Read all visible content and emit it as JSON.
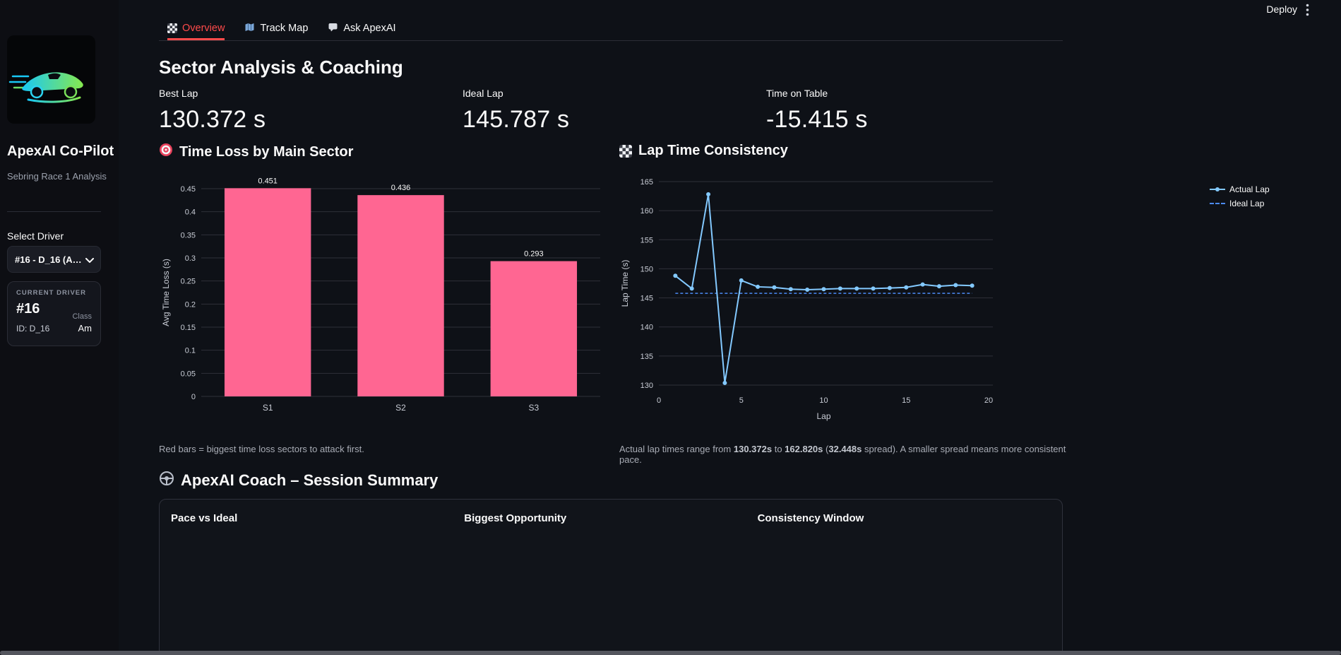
{
  "colors": {
    "accent": "#ff4b4b",
    "bar": "#ff6692",
    "actual_line": "#83c9ff",
    "ideal_line": "#4c8bf5"
  },
  "header": {
    "deploy_label": "Deploy"
  },
  "sidebar": {
    "app_title": "ApexAI Co-Pilot",
    "subtitle": "Sebring Race 1 Analysis",
    "select_driver_label": "Select Driver",
    "driver_select_value": "#16 - D_16 (A…",
    "current_driver": {
      "label": "CURRENT DRIVER",
      "number": "#16",
      "id": "ID: D_16",
      "class_label": "Class",
      "class_value": "Am"
    }
  },
  "tabs": [
    {
      "label": "Overview",
      "icon": "checkered-flag-icon",
      "active": true
    },
    {
      "label": "Track Map",
      "icon": "map-icon",
      "active": false
    },
    {
      "label": "Ask ApexAI",
      "icon": "speech-bubble-icon",
      "active": false
    }
  ],
  "page": {
    "title": "Sector Analysis & Coaching",
    "metrics": [
      {
        "label": "Best Lap",
        "value": "130.372 s"
      },
      {
        "label": "Ideal Lap",
        "value": "145.787 s"
      },
      {
        "label": "Time on Table",
        "value": "-15.415 s"
      }
    ],
    "bar_section_title": "Time Loss by Main Sector",
    "line_section_title": "Lap Time Consistency",
    "bar_caption": "Red bars = biggest time loss sectors to attack first.",
    "line_caption_parts": [
      {
        "t": "Actual lap times range from "
      },
      {
        "t": "130.372s"
      },
      {
        "t": " to "
      },
      {
        "t": "162.820s"
      },
      {
        "t": " ("
      },
      {
        "t": "32.448s"
      },
      {
        "t": " spread). A smaller spread means more consistent pace."
      }
    ],
    "coach_title": "ApexAI Coach – Session Summary",
    "summary_columns": [
      "Pace vs Ideal",
      "Biggest Opportunity",
      "Consistency Window"
    ]
  },
  "chart_data": [
    {
      "id": "time-loss-by-sector",
      "type": "bar",
      "title": "Time Loss by Main Sector",
      "categories": [
        "S1",
        "S2",
        "S3"
      ],
      "values": [
        0.451,
        0.436,
        0.293
      ],
      "value_labels": [
        "0.451",
        "0.436",
        "0.293"
      ],
      "xlabel": "",
      "ylabel": "Avg Time Loss (s)",
      "ylim": [
        0,
        0.45
      ],
      "ytick_step": 0.05,
      "grid": true,
      "legend_position": "none"
    },
    {
      "id": "lap-time-consistency",
      "type": "line",
      "title": "Lap Time Consistency",
      "xlabel": "Lap",
      "ylabel": "Lap Time (s)",
      "xlim": [
        0,
        20
      ],
      "ylim": [
        130,
        165
      ],
      "xticks": [
        0,
        5,
        10,
        15,
        20
      ],
      "yticks": [
        130,
        135,
        140,
        145,
        150,
        155,
        160,
        165
      ],
      "grid": true,
      "legend_position": "right",
      "series": [
        {
          "name": "Actual Lap",
          "style": "solid-with-markers",
          "x": [
            1,
            2,
            3,
            4,
            5,
            6,
            7,
            8,
            9,
            10,
            11,
            12,
            13,
            14,
            15,
            16,
            17,
            18,
            19
          ],
          "y": [
            148.8,
            146.6,
            162.82,
            130.372,
            148.0,
            146.9,
            146.8,
            146.5,
            146.4,
            146.5,
            146.6,
            146.6,
            146.6,
            146.7,
            146.8,
            147.3,
            147.0,
            147.2,
            147.1
          ]
        },
        {
          "name": "Ideal Lap",
          "style": "dashed",
          "y_const": 145.787,
          "x_range": [
            1,
            19
          ]
        }
      ]
    }
  ]
}
